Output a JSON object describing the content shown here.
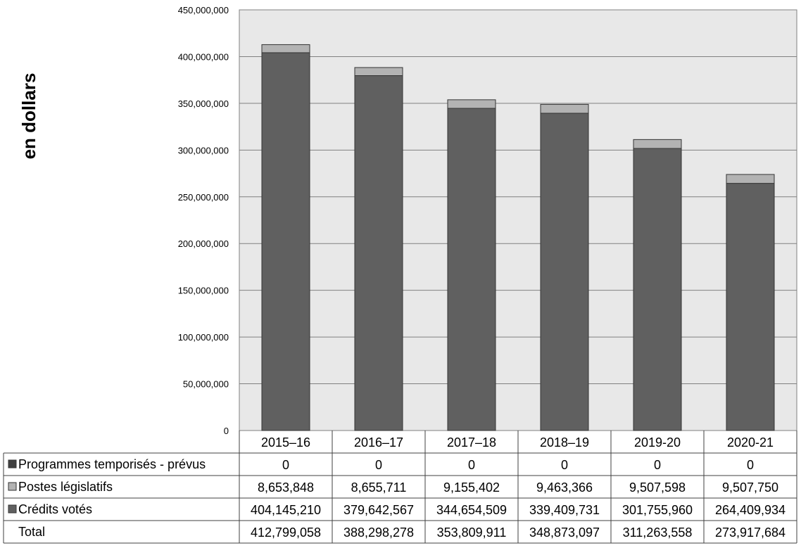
{
  "chart_data": {
    "type": "bar",
    "stacked": true,
    "ylabel": "en dollars",
    "ylim": [
      0,
      450000000
    ],
    "yticks": [
      "0",
      "50,000,000",
      "100,000,000",
      "150,000,000",
      "200,000,000",
      "250,000,000",
      "300,000,000",
      "350,000,000",
      "400,000,000",
      "450,000,000"
    ],
    "grid": true,
    "categories": [
      "2015–16",
      "2016–17",
      "2017–18",
      "2018–19",
      "2019-20",
      "2020-21"
    ],
    "series": [
      {
        "name": "Programmes temporisés - prévus",
        "values": [
          0,
          0,
          0,
          0,
          0,
          0
        ],
        "labels": [
          "0",
          "0",
          "0",
          "0",
          "0",
          "0"
        ],
        "color": "#404040"
      },
      {
        "name": "Postes législatifs",
        "values": [
          8653848,
          8655711,
          9155402,
          9463366,
          9507598,
          9507750
        ],
        "labels": [
          "8,653,848",
          "8,655,711",
          "9,155,402",
          "9,463,366",
          "9,507,598",
          "9,507,750"
        ],
        "color": "#b3b3b3"
      },
      {
        "name": "Crédits votés",
        "values": [
          404145210,
          379642567,
          344654509,
          339409731,
          301755960,
          264409934
        ],
        "labels": [
          "404,145,210",
          "379,642,567",
          "344,654,509",
          "339,409,731",
          "301,755,960",
          "264,409,934"
        ],
        "color": "#606060"
      }
    ],
    "table": {
      "total_label": "Total",
      "totals": [
        "412,799,058",
        "388,298,278",
        "353,809,911",
        "348,873,097",
        "311,263,558",
        "273,917,684"
      ]
    },
    "colors": {
      "plot_background": "#e8e8e8",
      "grid": "#808080"
    }
  }
}
